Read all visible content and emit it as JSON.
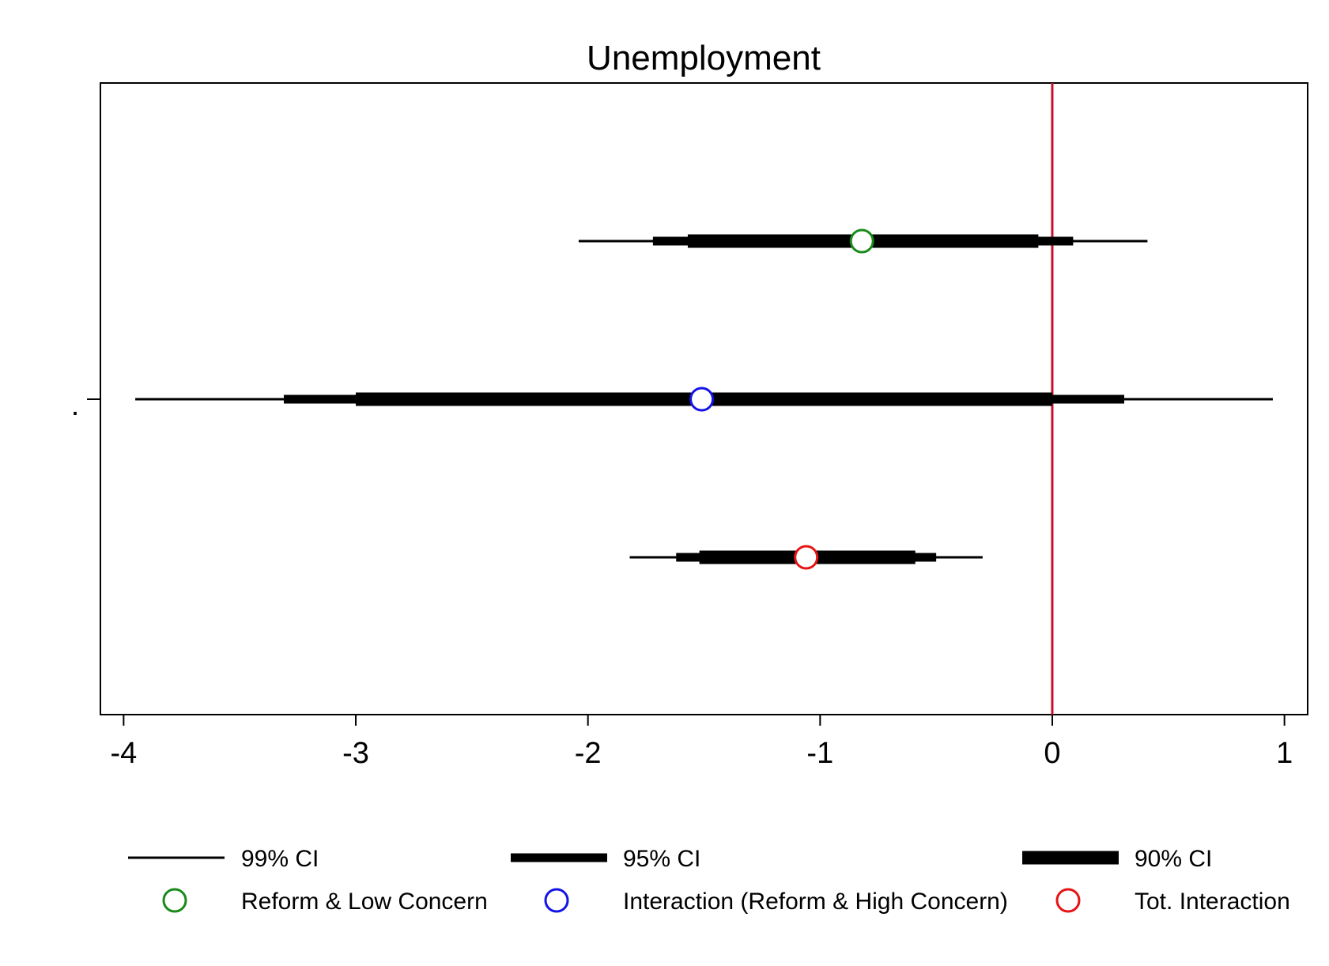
{
  "chart_data": {
    "type": "scatter",
    "title": "Unemployment",
    "xlabel": "",
    "ylabel": "",
    "y_tick_labels": [
      "."
    ],
    "xlim": [
      -4.1,
      1.1
    ],
    "x_ticks": [
      -4,
      -3,
      -2,
      -1,
      0,
      1
    ],
    "x_tick_labels": [
      "-4",
      "-3",
      "-2",
      "-1",
      "0",
      "1"
    ],
    "reference_line": {
      "x": 0,
      "color": "#c8102e"
    },
    "grid": false,
    "legend_position": "bottom",
    "ci_legend": [
      "99% CI",
      "95% CI",
      "90% CI"
    ],
    "series": [
      {
        "name": "Reform & Low Concern",
        "color": "#1a8a1a",
        "estimate": -0.82,
        "ci99": [
          -2.04,
          0.41
        ],
        "ci95": [
          -1.72,
          0.09
        ],
        "ci90": [
          -1.57,
          -0.06
        ]
      },
      {
        "name": "Interaction (Reform & High Concern)",
        "color": "#1414e6",
        "estimate": -1.51,
        "ci99": [
          -3.95,
          0.95
        ],
        "ci95": [
          -3.31,
          0.31
        ],
        "ci90": [
          -3.0,
          0.0
        ]
      },
      {
        "name": "Tot. Interaction",
        "color": "#e61414",
        "estimate": -1.06,
        "ci99": [
          -1.82,
          -0.3
        ],
        "ci95": [
          -1.62,
          -0.5
        ],
        "ci90": [
          -1.52,
          -0.59
        ]
      }
    ]
  }
}
